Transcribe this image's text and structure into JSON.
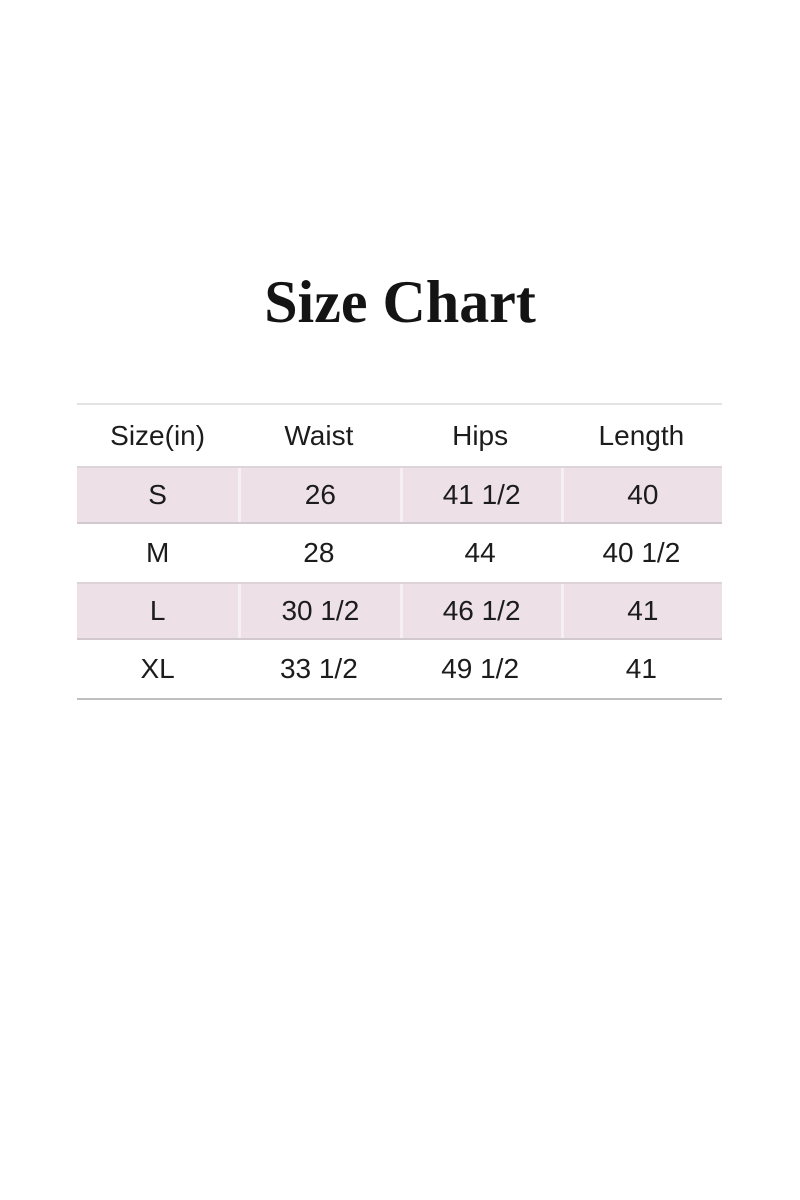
{
  "title": "Size Chart",
  "table": {
    "columns": [
      "Size(in)",
      "Waist",
      "Hips",
      "Length"
    ],
    "rows": [
      {
        "cells": [
          "S",
          "26",
          "41 1/2",
          "40"
        ],
        "shaded": true
      },
      {
        "cells": [
          "M",
          "28",
          "44",
          "40 1/2"
        ],
        "shaded": false
      },
      {
        "cells": [
          "L",
          "30 1/2",
          "46 1/2",
          "41"
        ],
        "shaded": true
      },
      {
        "cells": [
          "XL",
          "33 1/2",
          "49 1/2",
          "41"
        ],
        "shaded": false
      }
    ]
  },
  "chart_data": {
    "type": "table",
    "title": "Size Chart",
    "columns": [
      "Size(in)",
      "Waist",
      "Hips",
      "Length"
    ],
    "rows": [
      [
        "S",
        "26",
        "41 1/2",
        "40"
      ],
      [
        "M",
        "28",
        "44",
        "40 1/2"
      ],
      [
        "L",
        "30 1/2",
        "46 1/2",
        "41"
      ],
      [
        "XL",
        "33 1/2",
        "49 1/2",
        "41"
      ]
    ]
  },
  "colors": {
    "background": "#ffffff",
    "title_text": "#141414",
    "table_text": "#1c1c1c",
    "shaded_row_bg": "#ede1e7",
    "shaded_row_border": "#dcd4d8",
    "table_top_rule": "#e3e3e3",
    "table_bottom_rule": "#bfbfbf"
  }
}
